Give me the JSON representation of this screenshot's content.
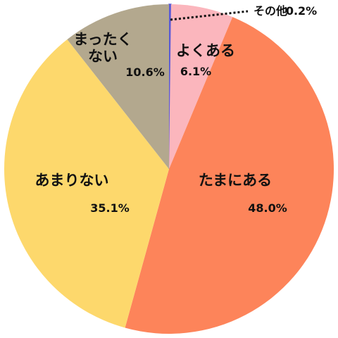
{
  "chart_data": {
    "type": "pie",
    "categories": [
      "その他",
      "よくある",
      "たまにある",
      "あまりない",
      "まったくない"
    ],
    "values": [
      0.2,
      6.1,
      48.0,
      35.1,
      10.6
    ],
    "value_labels": [
      "0.2%",
      "6.1%",
      "48.0%",
      "35.1%",
      "10.6%"
    ],
    "colors": [
      "#5b5bd6",
      "#fbb6bd",
      "#fd845a",
      "#fdd86c",
      "#b3a88e"
    ]
  }
}
